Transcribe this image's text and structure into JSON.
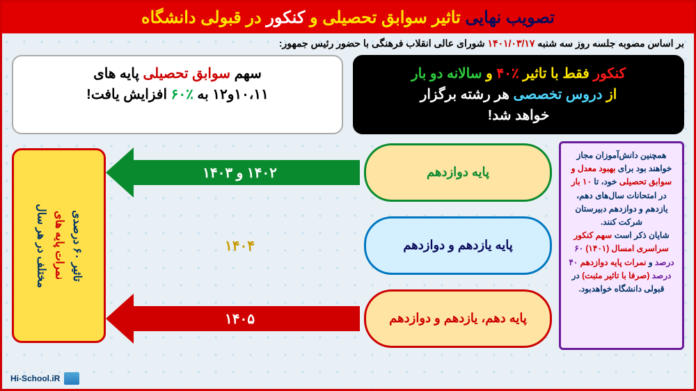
{
  "header": {
    "p1": "تصویب نهایی",
    "p2": "تاثیر سوابق تحصیلی",
    "joiner": "و",
    "p3a": "کنکور",
    "p3b": "در قبولی دانشگاه"
  },
  "sub": {
    "pre": "بر اساس مصوبه جلسه روز سه شنبه",
    "date": "۱۴۰۱/۰۳/۱۷",
    "post": "شورای عالی انقلاب فرهنگی با حضور رئیس جمهور:"
  },
  "box_black": {
    "l1a": "کنکور",
    "l1b": "فقط با تاثیر",
    "l1c": "٪۴۰",
    "l1d": "و",
    "l1e": "سالانه دو بار",
    "l2a": "از",
    "l2b": "دروس تخصصی",
    "l2c": "هر رشته برگزار",
    "l3": "خواهد شد!"
  },
  "box_white": {
    "l1a": "سهم",
    "l1b": "سوابق تحصیلی",
    "l1c": "پایه های",
    "l2a": "۱۰،۱۱و۱۲",
    "l2b": "به",
    "l2c": "٪۶۰",
    "l2d": "افزایش یافت!"
  },
  "flow": {
    "rows": [
      {
        "cloud": "پایه دوازدهم",
        "arrow": "۱۴۰۲ و ۱۴۰۳",
        "color": "g"
      },
      {
        "cloud": "پایه یازدهم و دوازدهم",
        "arrow": "۱۴۰۴",
        "color": "b"
      },
      {
        "cloud": "پایه دهم، یازدهم و دوازدهم",
        "arrow": "۱۴۰۵",
        "color": "r"
      }
    ]
  },
  "goldbox": {
    "l1": "تاثیر ۶۰ درصدی",
    "l2": "نمرات پایه های",
    "l3": "مختلف در هر سال"
  },
  "side_note_html": "همچنین دانش‌آموزان مجاز خواهند بود برای <span class='red'>بهبود معدل و سوابق تحصیلی</span> خود، تا <span class='red'>۱۰ بار</span> در امتحانات سال‌های دهم، یازدهم و دوازدهم دبیرستان شرکت کنند.<br>شایان ذکر است <span class='red'>سهم کنکور سراسری امسال (۱۴۰۱)</span> <span class='pur'>۶۰ درصد</span> و <span class='red'>نمرات پایه دوازدهم</span> <span class='pur'>۴۰ درصد</span> <span class='red'>(صرفا با تاثیر مثبت)</span> در قبولی دانشگاه خواهدبود.",
  "footer": "Hi-School.iR"
}
